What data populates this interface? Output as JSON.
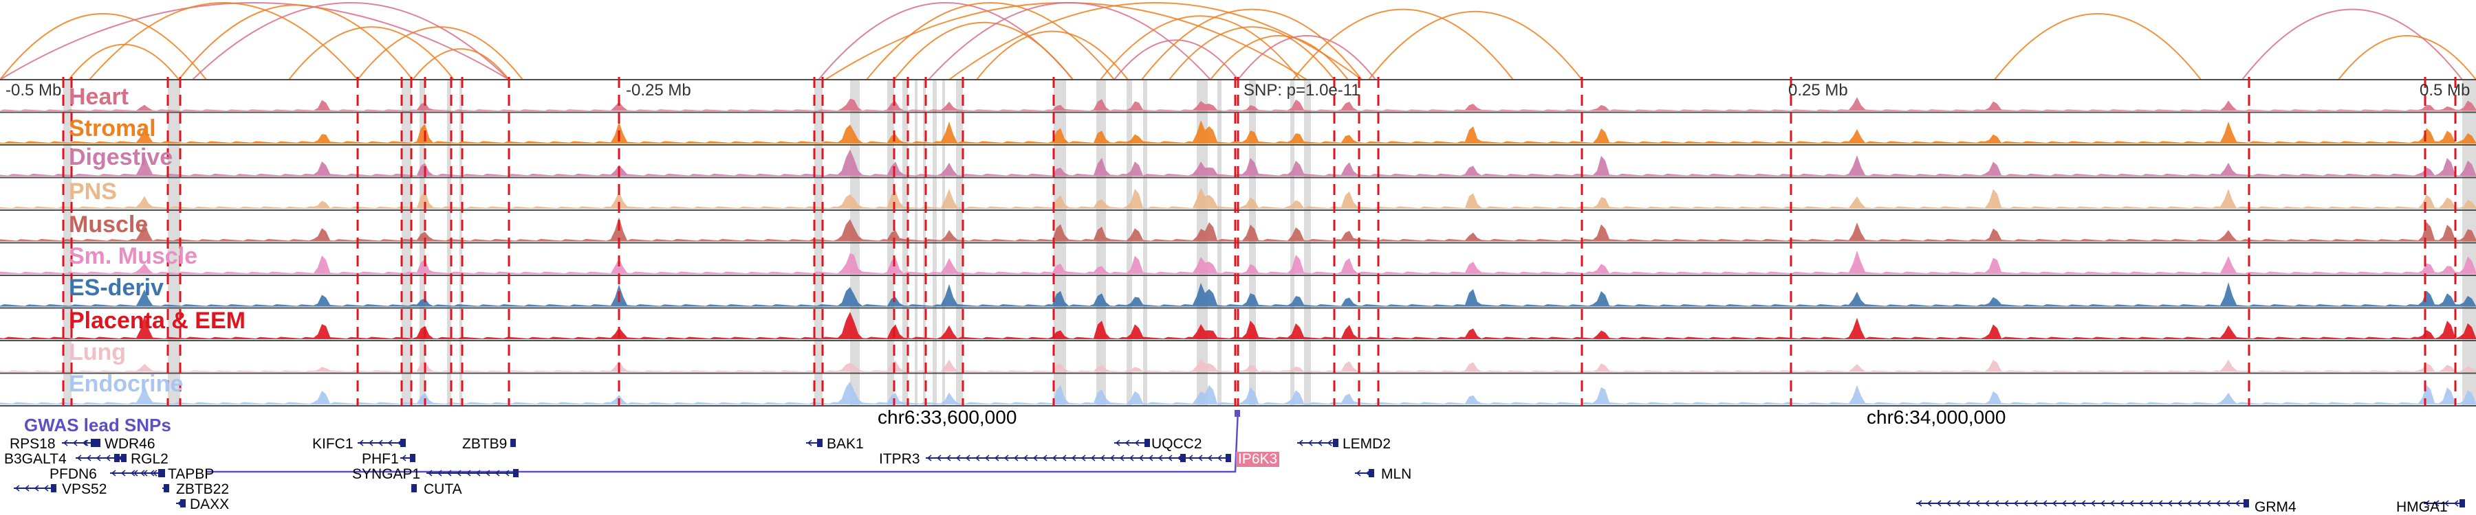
{
  "scale": {
    "labels": [
      "-0.5 Mb",
      "-0.25 Mb",
      "0.25 Mb",
      "0.5 Mb"
    ],
    "snp_label": "SNP: p=1.0e-11"
  },
  "tracks": [
    {
      "label": "Heart",
      "color": "#d96f86"
    },
    {
      "label": "Stromal",
      "color": "#f07f1e"
    },
    {
      "label": "Digestive",
      "color": "#cc7aa8"
    },
    {
      "label": "PNS",
      "color": "#e9b98e"
    },
    {
      "label": "Muscle",
      "color": "#c4645c"
    },
    {
      "label": "Sm. Muscle",
      "color": "#e98ec2"
    },
    {
      "label": "ES-deriv",
      "color": "#3d74ad"
    },
    {
      "label": "Placenta & EEM",
      "color": "#e0141f"
    },
    {
      "label": "Lung",
      "color": "#f0c0c6"
    },
    {
      "label": "Endocrine",
      "color": "#a9c6f2"
    }
  ],
  "gwas": {
    "label": "GWAS lead SNPs",
    "color": "#5b4fc4"
  },
  "coordinates": [
    "chr6:33,600,000",
    "chr6:34,000,000"
  ],
  "genes": [
    "RPS18",
    "WDR46",
    "B3GALT4",
    "RGL2",
    "PFDN6",
    "TAPBP",
    "VPS52",
    "ZBTB22",
    "DAXX",
    "KIFC1",
    "PHF1",
    "SYNGAP1",
    "CUTA",
    "ZBTB9",
    "BAK1",
    "ITPR3",
    "UQCC2",
    "IP6K3",
    "LEMD2",
    "MLN",
    "GRM4",
    "HMGA1"
  ],
  "highlight_gene": "IP6K3",
  "colors": {
    "loop": "#f07f1e",
    "loop_alt": "#d96f86",
    "dashed": "#e0141f",
    "shade": "#dcdcdc",
    "gene": "#1a237e"
  }
}
